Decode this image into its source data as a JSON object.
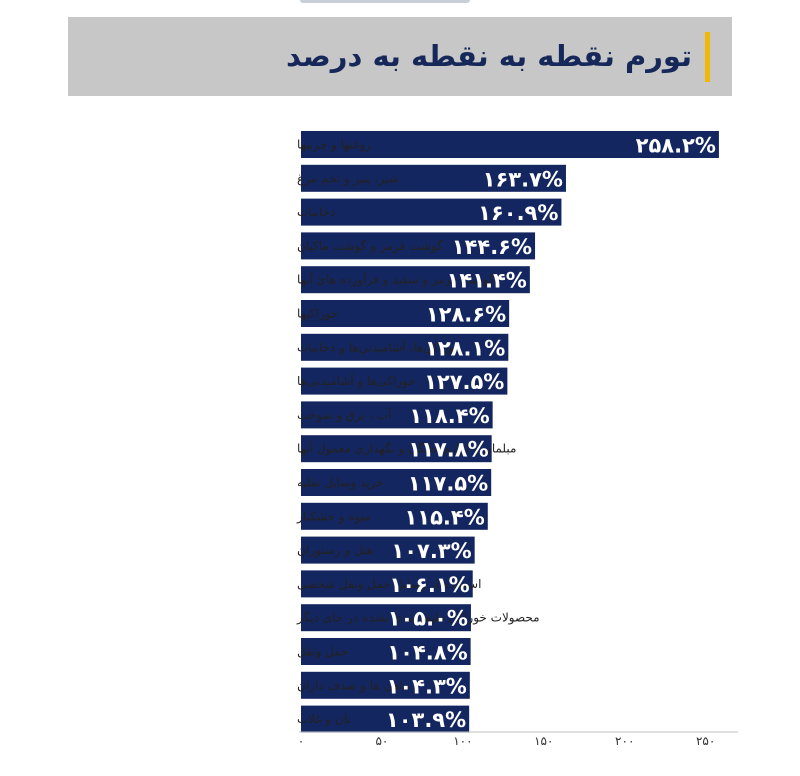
{
  "header": {
    "title": "تورم نقطه به نقطه به درصد"
  },
  "colors": {
    "bar": "#142660",
    "header_bg": "#c7c7c7",
    "accent": "#f2b705",
    "title": "#16285a"
  },
  "chart_data": {
    "type": "bar",
    "orientation": "horizontal",
    "title": "تورم نقطه به نقطه به درصد",
    "xlabel": "",
    "ylabel": "",
    "xlim": [
      0,
      270
    ],
    "grid": false,
    "categories": [
      "روغنها و چربیها",
      "شیر، پنیر و تخم مرغ",
      "دخانیات",
      "گوشت قرمز و گوشت ماکیان",
      "گوشت قرمز و سفید و فرآورده هائ آنها",
      "خوراکیها",
      "خوراکی‌ها، آشامیدنی‌ها و دخانیات",
      "خوراکی‌ها و آشامیدنی‌ها",
      "آب ، برق و سوخت",
      "مبلمان و لوازم خانگی و نگهداری معمول آنها",
      "خرید وسایل نقلیه",
      "میوه و خشکبار",
      "هتل و رستوران",
      "استفاده از وسایل حمل ونقل شخصی",
      "محصولات خوراکی طبقه بندی نشده در جای دیگر",
      "حمل ونقل",
      "ماهی ها و صدف داران",
      "نان و غلات"
    ],
    "values": [
      258.2,
      163.7,
      160.9,
      144.6,
      141.4,
      128.6,
      128.1,
      127.5,
      118.4,
      117.8,
      117.5,
      115.4,
      107.3,
      106.1,
      105.0,
      104.8,
      104.3,
      103.9
    ],
    "value_labels": [
      "۲۵۸.۲%",
      "۱۶۳.۷%",
      "۱۶۰.۹%",
      "۱۴۴.۶%",
      "۱۴۱.۴%",
      "۱۲۸.۶%",
      "۱۲۸.۱%",
      "۱۲۷.۵%",
      "۱۱۸.۴%",
      "۱۱۷.۸%",
      "۱۱۷.۵%",
      "۱۱۵.۴%",
      "۱۰۷.۳%",
      "۱۰۶.۱%",
      "۱۰۵.۰%",
      "۱۰۴.۸%",
      "۱۰۴.۳%",
      "۱۰۳.۹%"
    ],
    "ticks": [
      0,
      50,
      100,
      150,
      200,
      250
    ],
    "tick_labels": [
      "۰",
      "۵۰",
      "۱۰۰",
      "۱۵۰",
      "۲۰۰",
      "۲۵۰"
    ]
  }
}
